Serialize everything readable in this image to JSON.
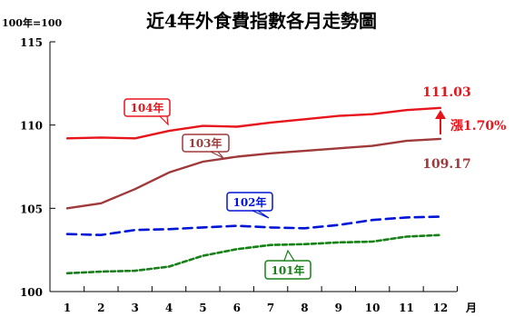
{
  "chart_data": {
    "type": "line",
    "title": "近4年外食費指數各月走勢圖",
    "unit_label": "100年=100",
    "xlabel": "月",
    "ylabel": "",
    "categories": [
      "1",
      "2",
      "3",
      "4",
      "5",
      "6",
      "7",
      "8",
      "9",
      "10",
      "11",
      "12"
    ],
    "x": [
      1,
      2,
      3,
      4,
      5,
      6,
      7,
      8,
      9,
      10,
      11,
      12
    ],
    "ylim": [
      100,
      115
    ],
    "yticks": [
      100,
      105,
      110,
      115
    ],
    "grid": false,
    "legend": "inline labels",
    "series": [
      {
        "name": "104年",
        "color": "#e8141b",
        "style": "solid",
        "values": [
          109.2,
          109.25,
          109.2,
          109.65,
          109.95,
          109.9,
          110.15,
          110.35,
          110.55,
          110.65,
          110.9,
          111.03
        ]
      },
      {
        "name": "103年",
        "color": "#a0393a",
        "style": "solid",
        "values": [
          105.0,
          105.3,
          106.15,
          107.15,
          107.8,
          108.1,
          108.3,
          108.45,
          108.6,
          108.75,
          109.05,
          109.17
        ]
      },
      {
        "name": "102年",
        "color": "#0015d8",
        "style": "dashed",
        "values": [
          103.45,
          103.4,
          103.7,
          103.75,
          103.85,
          103.95,
          103.85,
          103.8,
          104.0,
          104.3,
          104.45,
          104.5
        ]
      },
      {
        "name": "101年",
        "color": "#188018",
        "style": "dashed",
        "values": [
          101.1,
          101.2,
          101.25,
          101.5,
          102.15,
          102.55,
          102.8,
          102.85,
          102.95,
          103.0,
          103.3,
          103.4
        ]
      }
    ],
    "annotations": {
      "end_value_104": "111.03",
      "end_value_103": "109.17",
      "change_label": "漲1.70%",
      "change_color": "#e8141b"
    }
  }
}
